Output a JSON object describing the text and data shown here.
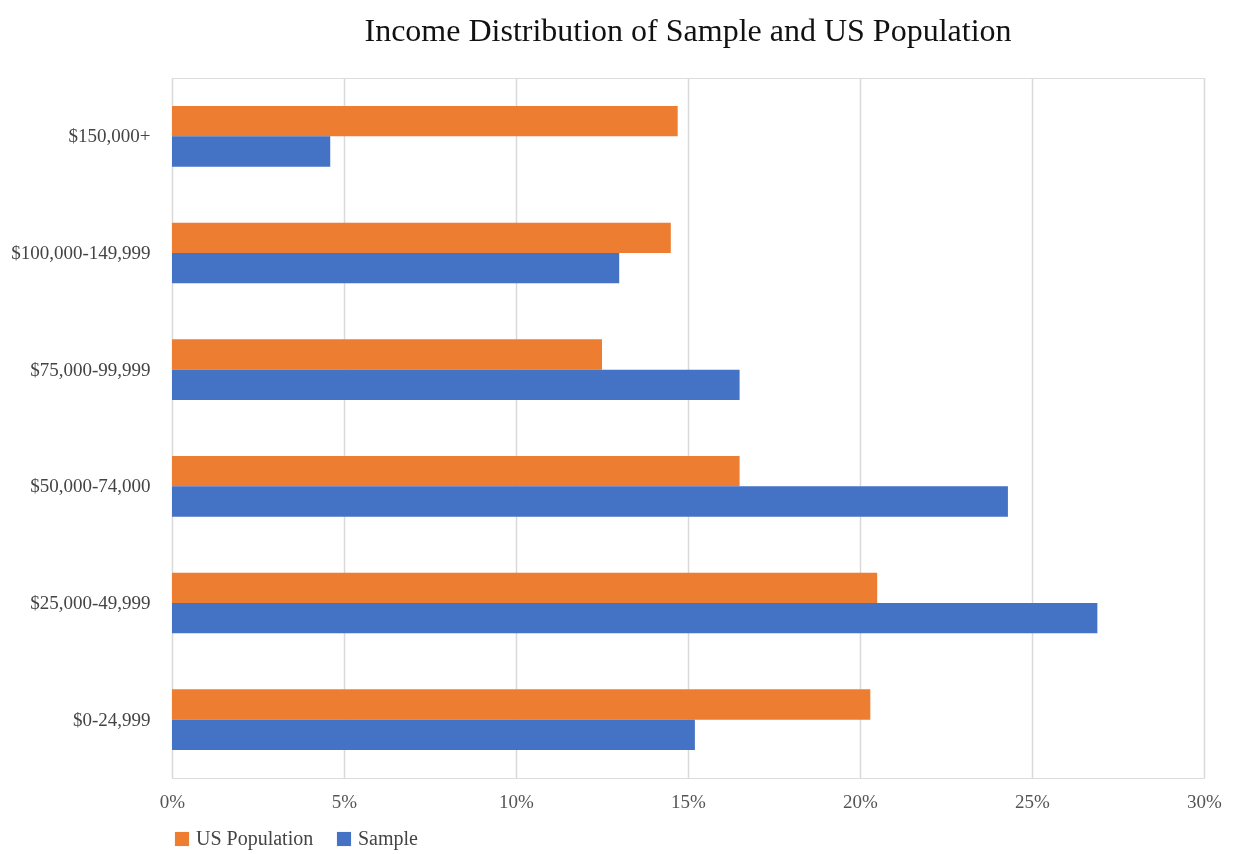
{
  "chart_data": {
    "type": "bar",
    "orientation": "horizontal",
    "title": "Income Distribution of Sample and US Population",
    "categories": [
      "$150,000+",
      "$100,000-149,999",
      "$75,000-99,999",
      "$50,000-74,000",
      "$25,000-49,999",
      "$0-24,999"
    ],
    "series": [
      {
        "name": "US Population",
        "color": "#ed7d31",
        "values": [
          14.7,
          14.5,
          12.5,
          16.5,
          20.5,
          20.3
        ]
      },
      {
        "name": "Sample",
        "color": "#4472c4",
        "values": [
          4.6,
          13.0,
          16.5,
          24.3,
          26.9,
          15.2
        ]
      }
    ],
    "xlim": [
      0,
      30
    ],
    "xticks": [
      {
        "value": 0,
        "label": "0%"
      },
      {
        "value": 5,
        "label": "5%"
      },
      {
        "value": 10,
        "label": "10%"
      },
      {
        "value": 15,
        "label": "15%"
      },
      {
        "value": 20,
        "label": "20%"
      },
      {
        "value": 25,
        "label": "25%"
      },
      {
        "value": 30,
        "label": "30%"
      }
    ],
    "grid": "x",
    "legend": "bottom"
  }
}
